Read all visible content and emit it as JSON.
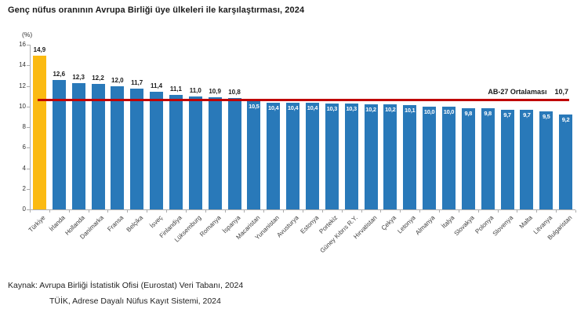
{
  "title": "Genç nüfus oranının Avrupa Birliği üye ülkeleri ile karşılaştırması, 2024",
  "chart_data": {
    "type": "bar",
    "title": "Genç nüfus oranının Avrupa Birliği üye ülkeleri ile karşılaştırması, 2024",
    "unit_label": "(%)",
    "ylim": [
      0,
      16
    ],
    "yticks": [
      0,
      2,
      4,
      6,
      8,
      10,
      12,
      14,
      16
    ],
    "grid": false,
    "categories": [
      "Türkiye",
      "İrlanda",
      "Hollanda",
      "Danimarka",
      "Fransa",
      "Belçika",
      "İsveç",
      "Finlandiya",
      "Lüksemburg",
      "Romanya",
      "İspanya",
      "Macaristan",
      "Yunanistan",
      "Avusturya",
      "Estonya",
      "Portekiz",
      "Güney Kıbrıs R.Y.",
      "Hırvatistan",
      "Çekya",
      "Letonya",
      "Almanya",
      "İtalya",
      "Slovakya",
      "Polonya",
      "Slovenya",
      "Malta",
      "Litvanya",
      "Bulgaristan"
    ],
    "values": [
      14.9,
      12.6,
      12.3,
      12.2,
      12.0,
      11.7,
      11.4,
      11.1,
      11.0,
      10.9,
      10.8,
      10.5,
      10.4,
      10.4,
      10.4,
      10.3,
      10.3,
      10.2,
      10.2,
      10.1,
      10.0,
      10.0,
      9.8,
      9.8,
      9.7,
      9.7,
      9.5,
      9.2
    ],
    "value_labels": [
      "14,9",
      "12,6",
      "12,3",
      "12,2",
      "12,0",
      "11,7",
      "11,4",
      "11,1",
      "11,0",
      "10,9",
      "10,8",
      "10,5",
      "10,4",
      "10,4",
      "10,4",
      "10,3",
      "10,3",
      "10,2",
      "10,2",
      "10,1",
      "10,0",
      "10,0",
      "9,8",
      "9,8",
      "9,7",
      "9,7",
      "9,5",
      "9,2"
    ],
    "highlight_index": 0,
    "label_inside_from_index": 11,
    "colors": {
      "bar": "#2979B9",
      "highlight": "#FBBA12",
      "reference_line": "#C00000",
      "value_text": "#1a1a1a",
      "inside_value_text": "#ffffff"
    },
    "reference_line": {
      "label": "AB-27 Ortalaması",
      "value_label": "10,7",
      "value": 10.7
    }
  },
  "footer": {
    "line1": "Kaynak: Avrupa Birliği İstatistik Ofisi (Eurostat) Veri Tabanı, 2024",
    "line2": "TÜİK, Adrese Dayalı Nüfus Kayıt Sistemi, 2024"
  }
}
